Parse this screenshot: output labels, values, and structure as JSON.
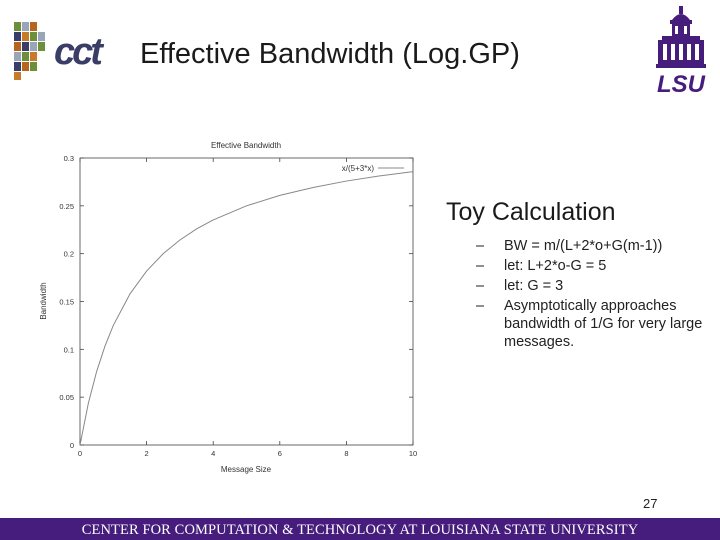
{
  "header": {
    "title": "Effective Bandwidth (Log.GP)",
    "left_logo_text": "cct",
    "right_logo_text": "LSU"
  },
  "colors": {
    "footer_bg": "#461d7c",
    "footer_text": "#ffffff",
    "logo_dark": "#3a3d66",
    "logo_purple": "#461d7c"
  },
  "chart_data": {
    "type": "line",
    "title": "Effective Bandwidth",
    "xlabel": "Message Size",
    "ylabel": "Bandwidth",
    "xlim": [
      0,
      10
    ],
    "ylim": [
      0,
      0.3
    ],
    "xticks": [
      "0",
      "2",
      "4",
      "6",
      "8",
      "10"
    ],
    "yticks": [
      "0",
      "0.05",
      "0.1",
      "0.15",
      "0.2",
      "0.25",
      "0.3"
    ],
    "grid": false,
    "legend_position": "top-right",
    "series": [
      {
        "name": "x/(5+3*x)",
        "color": "#888888",
        "x": [
          0,
          0.25,
          0.5,
          0.75,
          1,
          1.5,
          2,
          2.5,
          3,
          3.5,
          4,
          5,
          6,
          7,
          8,
          9,
          10
        ],
        "y": [
          0,
          0.0435,
          0.0769,
          0.1034,
          0.125,
          0.1579,
          0.1818,
          0.2,
          0.2143,
          0.2258,
          0.2353,
          0.25,
          0.2609,
          0.2692,
          0.2759,
          0.2813,
          0.2857
        ]
      }
    ]
  },
  "bullets": {
    "heading": "Toy Calculation",
    "dash": "–",
    "items": [
      "BW = m/(L+2*o+G(m-1))",
      "let: L+2*o-G = 5",
      "let: G = 3",
      "Asymptotically approaches bandwidth of 1/G for very large messages."
    ]
  },
  "page_number": "27",
  "footer": {
    "text": "CENTER FOR COMPUTATION & TECHNOLOGY AT LOUISIANA STATE UNIVERSITY"
  }
}
